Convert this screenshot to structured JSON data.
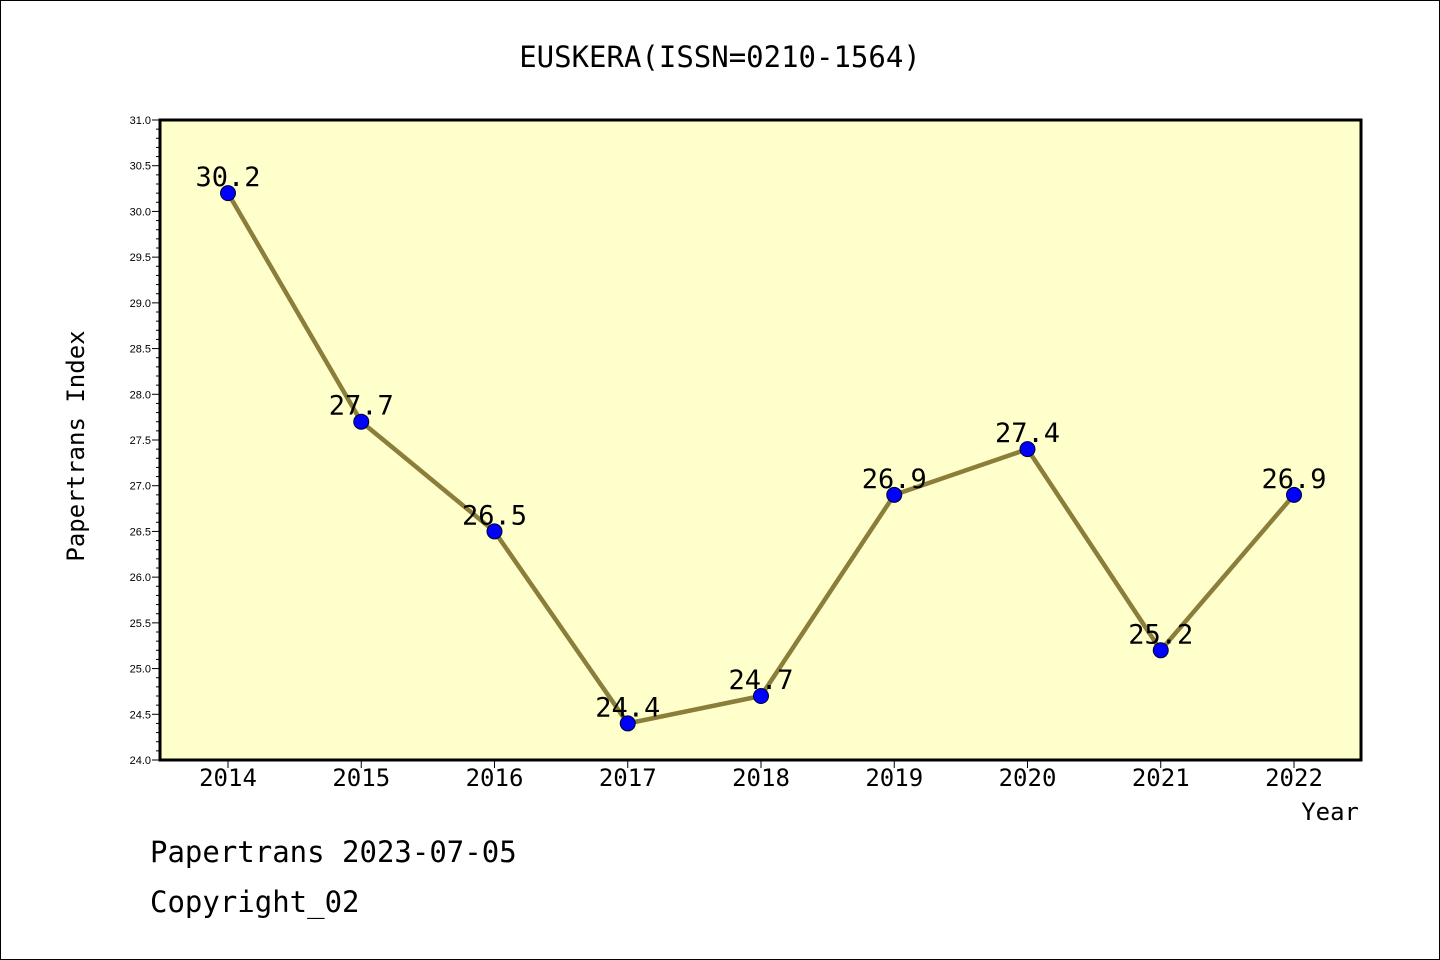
{
  "footer": {
    "line1": "Papertrans 2023-07-05",
    "line2": "Copyright_02"
  },
  "colors": {
    "plot_background": "#ffffcc",
    "line": "#8b7d3a",
    "marker": "#0000ff"
  },
  "chart_data": {
    "type": "line",
    "title": "EUSKERA(ISSN=0210-1564)",
    "xlabel": "Year",
    "ylabel": "Papertrans Index",
    "categories": [
      "2014",
      "2015",
      "2016",
      "2017",
      "2018",
      "2019",
      "2020",
      "2021",
      "2022"
    ],
    "values": [
      30.2,
      27.7,
      26.5,
      24.4,
      24.7,
      26.9,
      27.4,
      25.2,
      26.9
    ],
    "value_labels": [
      "30.2",
      "27.7",
      "26.5",
      "24.4",
      "24.7",
      "26.9",
      "27.4",
      "25.2",
      "26.9"
    ],
    "ylim": [
      24.0,
      31.0
    ],
    "yticks": [
      "24.0",
      "24.5",
      "25.0",
      "25.5",
      "26.0",
      "26.5",
      "27.0",
      "27.5",
      "28.0",
      "28.5",
      "29.0",
      "29.5",
      "30.0",
      "30.5",
      "31.0"
    ],
    "grid": false,
    "legend": "none"
  }
}
